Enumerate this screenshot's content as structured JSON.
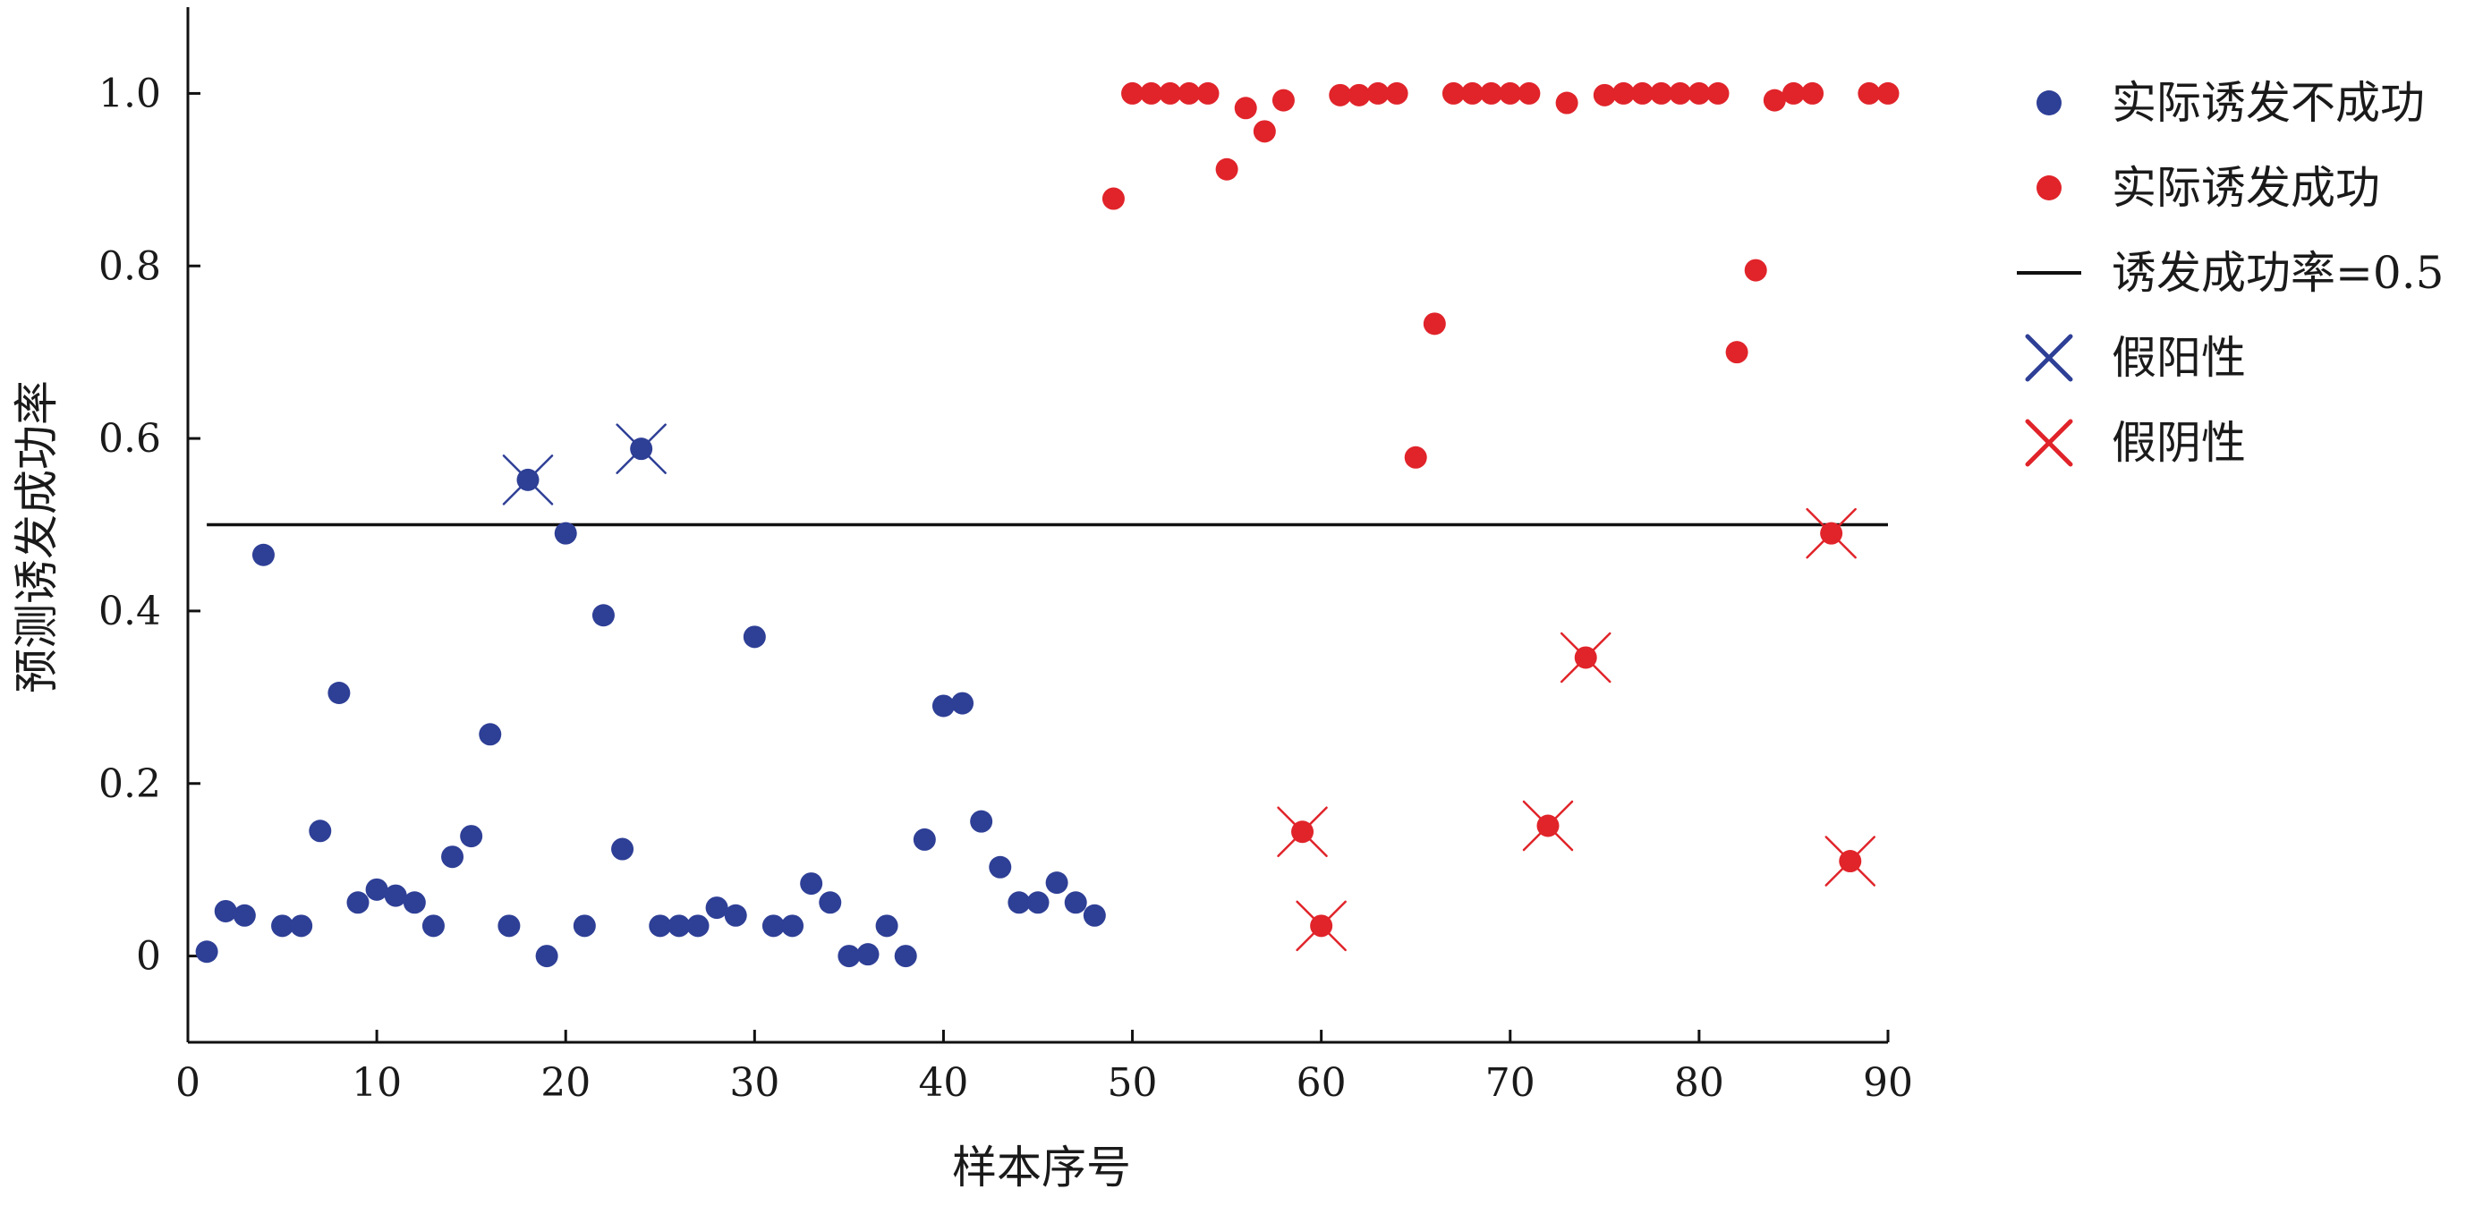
{
  "chart_data": {
    "type": "scatter",
    "xlabel": "样本序号",
    "ylabel": "预测诱发成功率",
    "xlim": [
      0,
      90
    ],
    "ylim": [
      -0.1,
      1.1
    ],
    "x_ticks": [
      0,
      10,
      20,
      30,
      40,
      50,
      60,
      70,
      80,
      90
    ],
    "x_tick_labels": [
      "0",
      "10",
      "20",
      "30",
      "40",
      "50",
      "60",
      "70",
      "80",
      "90"
    ],
    "y_ticks": [
      0,
      0.2,
      0.4,
      0.6,
      0.8,
      1.0
    ],
    "y_tick_labels": [
      "0",
      "0.2",
      "0.4",
      "0.6",
      "0.8",
      "1.0"
    ],
    "grid": false,
    "legend_position": "right",
    "threshold": 0.5,
    "colors": {
      "fail": "#2e3f96",
      "success": "#e0242a",
      "threshold": "#111111"
    },
    "series": [
      {
        "name": "实际诱发不成功",
        "color": "#2e3f96",
        "marker": "circle",
        "x": [
          1,
          2,
          3,
          4,
          5,
          6,
          7,
          8,
          9,
          10,
          11,
          12,
          13,
          14,
          15,
          16,
          17,
          18,
          19,
          20,
          21,
          22,
          23,
          24,
          25,
          26,
          27,
          28,
          29,
          30,
          31,
          32,
          33,
          34,
          35,
          36,
          37,
          38,
          39,
          40,
          41,
          42,
          43,
          44,
          45,
          46,
          47,
          48
        ],
        "y": [
          0.005,
          0.052,
          0.047,
          0.465,
          0.035,
          0.035,
          0.145,
          0.305,
          0.062,
          0.077,
          0.07,
          0.062,
          0.035,
          0.115,
          0.139,
          0.257,
          0.035,
          0.552,
          0.0,
          0.49,
          0.035,
          0.395,
          0.124,
          0.588,
          0.035,
          0.035,
          0.035,
          0.056,
          0.047,
          0.37,
          0.035,
          0.035,
          0.084,
          0.062,
          0.0,
          0.002,
          0.035,
          0.0,
          0.135,
          0.29,
          0.293,
          0.156,
          0.103,
          0.062,
          0.062,
          0.085,
          0.062,
          0.047
        ]
      },
      {
        "name": "实际诱发成功",
        "color": "#e0242a",
        "marker": "circle",
        "x": [
          49,
          50,
          51,
          52,
          53,
          54,
          55,
          56,
          57,
          58,
          59,
          60,
          61,
          62,
          63,
          64,
          65,
          66,
          67,
          68,
          69,
          70,
          71,
          72,
          73,
          74,
          75,
          76,
          77,
          78,
          79,
          80,
          81,
          82,
          83,
          84,
          85,
          86,
          87,
          88,
          89,
          90
        ],
        "y": [
          0.878,
          1.0,
          1.0,
          1.0,
          1.0,
          1.0,
          0.912,
          0.983,
          0.956,
          0.992,
          0.144,
          0.035,
          0.998,
          0.998,
          1.0,
          1.0,
          0.578,
          0.733,
          1.0,
          1.0,
          1.0,
          1.0,
          1.0,
          0.151,
          0.989,
          0.346,
          0.998,
          1.0,
          1.0,
          1.0,
          1.0,
          1.0,
          1.0,
          0.7,
          0.795,
          0.992,
          1.0,
          1.0,
          0.49,
          0.11,
          1.0,
          1.0
        ]
      },
      {
        "name": "诱发成功率=0.5",
        "type": "line",
        "color": "#111111",
        "y": 0.5,
        "x_range": [
          1,
          90
        ]
      },
      {
        "name": "假阳性",
        "color": "#2e3f96",
        "marker": "x",
        "x": [
          18,
          24
        ],
        "y": [
          0.552,
          0.588
        ]
      },
      {
        "name": "假阴性",
        "color": "#e0242a",
        "marker": "x",
        "x": [
          59,
          60,
          72,
          74,
          87,
          88
        ],
        "y": [
          0.144,
          0.035,
          0.151,
          0.346,
          0.49,
          0.11
        ]
      }
    ]
  }
}
